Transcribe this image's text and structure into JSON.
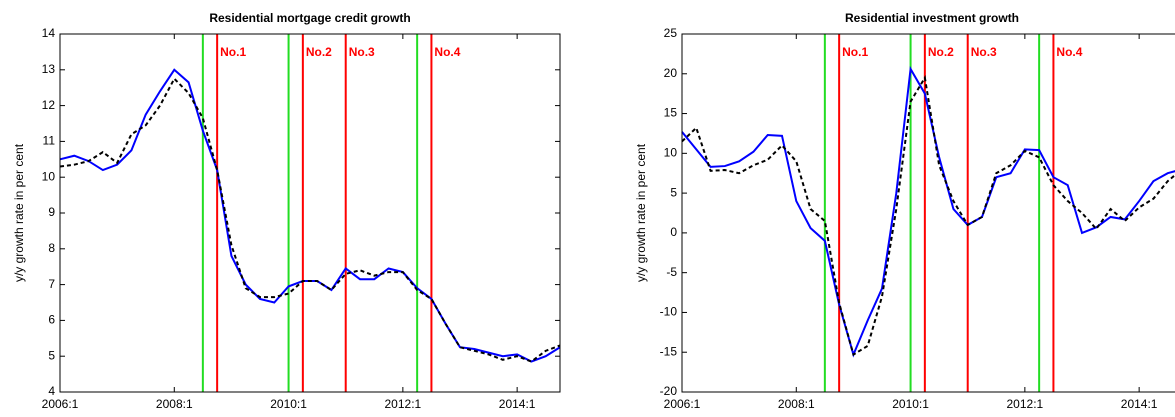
{
  "chart_data": [
    {
      "type": "line",
      "title": "Residential mortgage credit growth",
      "y_label": "y/y growth rate in per cent",
      "x": [
        2006,
        2006.25,
        2006.5,
        2006.75,
        2007,
        2007.25,
        2007.5,
        2007.75,
        2008,
        2008.25,
        2008.5,
        2008.75,
        2009,
        2009.25,
        2009.5,
        2009.75,
        2010,
        2010.25,
        2010.5,
        2010.75,
        2011,
        2011.25,
        2011.5,
        2011.75,
        2012,
        2012.25,
        2012.5,
        2012.75,
        2013,
        2013.25,
        2013.5,
        2013.75,
        2014,
        2014.25,
        2014.5,
        2014.75
      ],
      "series": [
        {
          "color": "#0000ff",
          "dashed": false,
          "values": [
            10.5,
            10.6,
            10.45,
            10.2,
            10.35,
            10.75,
            11.75,
            12.4,
            13.0,
            12.65,
            11.3,
            10.2,
            7.8,
            7.0,
            6.6,
            6.5,
            6.95,
            7.1,
            7.1,
            6.85,
            7.45,
            7.15,
            7.15,
            7.45,
            7.35,
            6.9,
            6.6,
            5.9,
            5.25,
            5.2,
            5.1,
            5.0,
            5.05,
            4.85,
            5.0,
            5.25
          ]
        },
        {
          "color": "#000000",
          "dashed": true,
          "values": [
            10.3,
            10.35,
            10.45,
            10.7,
            10.4,
            11.2,
            11.45,
            12.0,
            12.75,
            12.35,
            11.65,
            10.2,
            8.1,
            6.9,
            6.65,
            6.65,
            6.75,
            7.1,
            7.1,
            6.85,
            7.3,
            7.4,
            7.25,
            7.35,
            7.35,
            6.85,
            6.6,
            5.9,
            5.25,
            5.15,
            5.05,
            4.9,
            5.0,
            4.85,
            5.15,
            5.3
          ]
        }
      ],
      "events": [
        {
          "label": "No.1",
          "start": 2008.5,
          "end": 2008.75
        },
        {
          "label": "No.2",
          "start": 2010.0,
          "end": 2010.25
        },
        {
          "label": "No.3",
          "end": 2011.0
        },
        {
          "label": "No.4",
          "start": 2012.25,
          "end": 2012.5
        }
      ],
      "start_color": "#22dd22",
      "end_color": "#ff0000",
      "xlim": [
        2006,
        2014.75
      ],
      "xticks": [
        {
          "value": 2006,
          "label": "2006:1"
        },
        {
          "value": 2008,
          "label": "2008:1"
        },
        {
          "value": 2010,
          "label": "2010:1"
        },
        {
          "value": 2012,
          "label": "2012:1"
        },
        {
          "value": 2014,
          "label": "2014:1"
        }
      ],
      "ylim": [
        4,
        14
      ],
      "yticks": [
        4,
        5,
        6,
        7,
        8,
        9,
        10,
        11,
        12,
        13,
        14
      ]
    },
    {
      "type": "line",
      "title": "Residential investment growth",
      "y_label": "y/y growth rate in per cent",
      "x": [
        2006,
        2006.25,
        2006.5,
        2006.75,
        2007,
        2007.25,
        2007.5,
        2007.75,
        2008,
        2008.25,
        2008.5,
        2008.75,
        2009,
        2009.25,
        2009.5,
        2009.75,
        2010,
        2010.25,
        2010.5,
        2010.75,
        2011,
        2011.25,
        2011.5,
        2011.75,
        2012,
        2012.25,
        2012.5,
        2012.75,
        2013,
        2013.25,
        2013.5,
        2013.75,
        2014,
        2014.25,
        2014.5,
        2014.75
      ],
      "series": [
        {
          "color": "#0000ff",
          "dashed": false,
          "values": [
            12.7,
            10.5,
            8.3,
            8.4,
            9.0,
            10.2,
            12.3,
            12.2,
            4.0,
            0.6,
            -1.0,
            -9.0,
            -15.3,
            -11.0,
            -7.0,
            5.0,
            20.6,
            17.5,
            9.5,
            3.0,
            1.0,
            2.0,
            7.0,
            7.5,
            10.5,
            10.4,
            7.0,
            6.0,
            0.0,
            0.7,
            2.0,
            1.7,
            4.0,
            6.5,
            7.5,
            8.0
          ]
        },
        {
          "color": "#000000",
          "dashed": true,
          "values": [
            11.5,
            13.2,
            7.8,
            7.9,
            7.5,
            8.5,
            9.2,
            11.0,
            9.0,
            3.0,
            1.5,
            -8.8,
            -15.3,
            -14.2,
            -8.0,
            3.0,
            16.5,
            19.5,
            8.5,
            4.0,
            1.0,
            2.0,
            7.5,
            8.5,
            10.3,
            9.5,
            6.0,
            4.0,
            2.5,
            0.5,
            3.0,
            1.5,
            3.2,
            4.3,
            6.5,
            8.0
          ]
        }
      ],
      "events": [
        {
          "label": "No.1",
          "start": 2008.5,
          "end": 2008.75
        },
        {
          "label": "No.2",
          "start": 2010.0,
          "end": 2010.25
        },
        {
          "label": "No.3",
          "end": 2011.0
        },
        {
          "label": "No.4",
          "start": 2012.25,
          "end": 2012.5
        }
      ],
      "start_color": "#22dd22",
      "end_color": "#ff0000",
      "xlim": [
        2006,
        2014.75
      ],
      "xticks": [
        {
          "value": 2006,
          "label": "2006:1"
        },
        {
          "value": 2008,
          "label": "2008:1"
        },
        {
          "value": 2010,
          "label": "2010:1"
        },
        {
          "value": 2012,
          "label": "2012:1"
        },
        {
          "value": 2014,
          "label": "2014:1"
        }
      ],
      "ylim": [
        -20,
        25
      ],
      "yticks": [
        -20,
        -15,
        -10,
        -5,
        0,
        5,
        10,
        15,
        20,
        25
      ]
    }
  ]
}
